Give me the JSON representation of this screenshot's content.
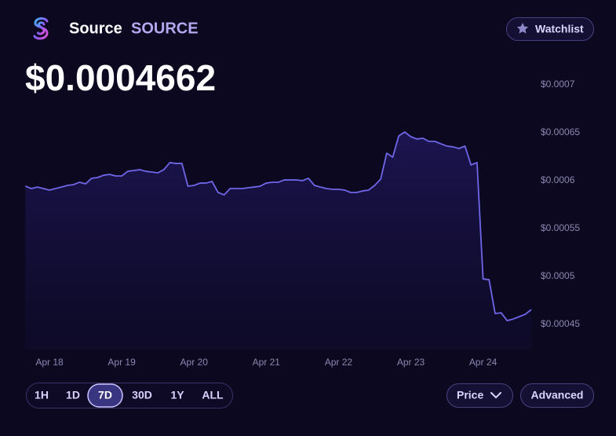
{
  "header": {
    "name": "Source",
    "symbol": "SOURCE",
    "watchlist": "Watchlist",
    "price": "$0.0004662"
  },
  "chart_data": {
    "type": "line",
    "color": "#6f66e8",
    "grid": false,
    "categories": [
      null,
      null,
      null,
      null,
      "Apr 18",
      null,
      null,
      null,
      null,
      null,
      null,
      null,
      null,
      null,
      null,
      null,
      "Apr 19",
      null,
      null,
      null,
      null,
      null,
      null,
      null,
      null,
      null,
      null,
      null,
      "Apr 20",
      null,
      null,
      null,
      null,
      null,
      null,
      null,
      null,
      null,
      null,
      null,
      "Apr 21",
      null,
      null,
      null,
      null,
      null,
      null,
      null,
      null,
      null,
      null,
      null,
      "Apr 22",
      null,
      null,
      null,
      null,
      null,
      null,
      null,
      null,
      null,
      null,
      null,
      "Apr 23",
      null,
      null,
      null,
      null,
      null,
      null,
      null,
      null,
      null,
      null,
      null,
      "Apr 24",
      null,
      null,
      null,
      null,
      null,
      null,
      null,
      null
    ],
    "values": [
      0.0005943,
      0.0005918,
      0.0005934,
      0.0005918,
      0.0005902,
      0.0005918,
      0.0005934,
      0.0005951,
      0.0005959,
      0.0005984,
      0.0005967,
      0.0006025,
      0.0006033,
      0.0006057,
      0.0006066,
      0.0006049,
      0.0006049,
      0.0006098,
      0.0006107,
      0.0006115,
      0.0006098,
      0.000609,
      0.0006082,
      0.0006115,
      0.0006189,
      0.000618,
      0.000618,
      0.0005943,
      0.0005951,
      0.0005975,
      0.0005975,
      0.0005992,
      0.0005877,
      0.0005852,
      0.0005918,
      0.0005918,
      0.0005918,
      0.0005926,
      0.0005934,
      0.0005943,
      0.0005975,
      0.0005984,
      0.0005984,
      0.0006008,
      0.0006008,
      0.0006008,
      0.0006,
      0.0006025,
      0.0005951,
      0.0005934,
      0.0005918,
      0.000591,
      0.000591,
      0.0005902,
      0.0005877,
      0.0005877,
      0.0005893,
      0.0005902,
      0.0005951,
      0.0006016,
      0.0006287,
      0.0006246,
      0.0006467,
      0.0006508,
      0.0006459,
      0.0006435,
      0.0006443,
      0.000641,
      0.000641,
      0.0006385,
      0.0006361,
      0.0006353,
      0.0006336,
      0.0006361,
      0.0006164,
      0.0006189,
      0.0004975,
      0.0004967,
      0.0004614,
      0.0004622,
      0.000454,
      0.0004557,
      0.0004581,
      0.0004606,
      0.0004655
    ],
    "ylim": [
      0.0004238,
      0.0007
    ],
    "yticks": [
      {
        "value": 0.0007,
        "label": "$0.0007"
      },
      {
        "value": 0.00065,
        "label": "$0.00065"
      },
      {
        "value": 0.0006,
        "label": "$0.0006"
      },
      {
        "value": 0.00055,
        "label": "$0.00055"
      },
      {
        "value": 0.0005,
        "label": "$0.0005"
      },
      {
        "value": 0.00045,
        "label": "$0.00045"
      }
    ]
  },
  "controls": {
    "ranges": [
      "1H",
      "1D",
      "7D",
      "30D",
      "1Y",
      "ALL"
    ],
    "selected": "7D",
    "price": "Price",
    "advanced": "Advanced"
  }
}
